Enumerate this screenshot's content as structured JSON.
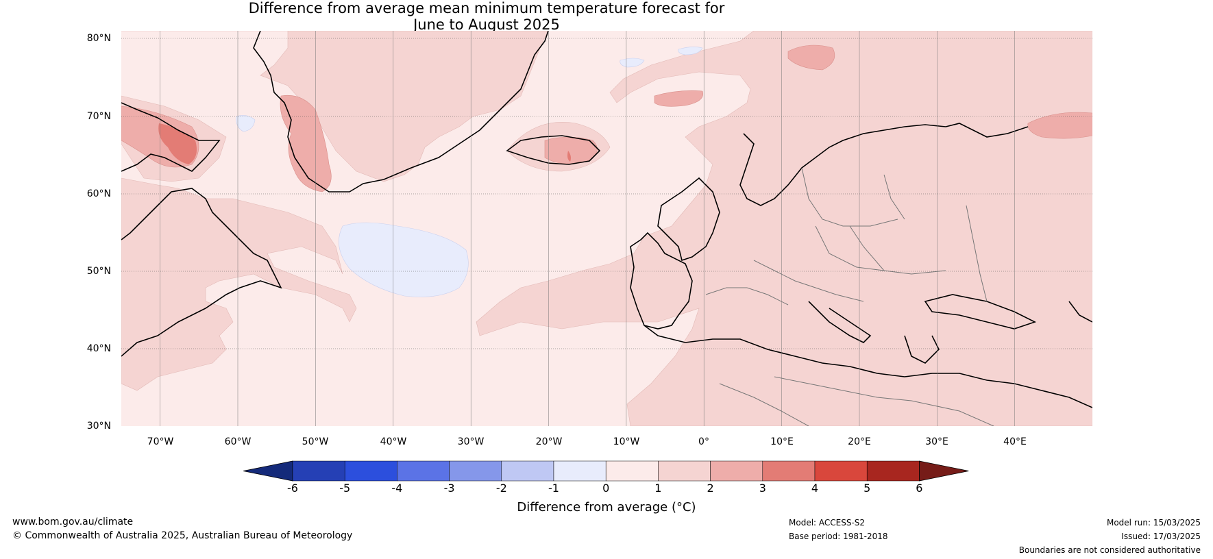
{
  "title": {
    "line1": "Difference from average mean minimum temperature forecast for",
    "line2": "June to August 2025"
  },
  "map": {
    "region": "North Atlantic and Europe",
    "projection": "plate carree",
    "lat_labels": [
      "80°N",
      "70°N",
      "60°N",
      "50°N",
      "40°N",
      "30°N"
    ],
    "lon_labels": [
      "70°W",
      "60°W",
      "50°W",
      "40°W",
      "30°W",
      "20°W",
      "10°W",
      "0°",
      "10°E",
      "20°E",
      "30°E",
      "40°E"
    ],
    "lat_range": [
      30,
      81
    ],
    "lon_range": [
      -75,
      50
    ],
    "gridlines": true,
    "dominant_anomaly": "0 to 1 over ocean, 1 to 2 over most land",
    "features": [
      {
        "name": "Greenland west coast",
        "anomaly": "2 to 3"
      },
      {
        "name": "Baffin Island",
        "anomaly": "3 to 4"
      },
      {
        "name": "Iceland",
        "anomaly": "2 to 3"
      },
      {
        "name": "North Atlantic near 45°W 50°N",
        "anomaly": "-1 to 0"
      },
      {
        "name": "Svalbard",
        "anomaly": "2 to 3"
      },
      {
        "name": "Kola / NW Russia",
        "anomaly": "2 to 3"
      }
    ]
  },
  "colorbar": {
    "label": "Difference from average (°C)",
    "ticks": [
      "-6",
      "-5",
      "-4",
      "-3",
      "-2",
      "-1",
      "0",
      "1",
      "2",
      "3",
      "4",
      "5",
      "6"
    ],
    "colors": [
      "#142a7a",
      "#2540b5",
      "#2c4fdd",
      "#5b73e6",
      "#8597ea",
      "#bfc8f4",
      "#e8ecfc",
      "#fcebea",
      "#f5d4d2",
      "#eeadaa",
      "#e37c75",
      "#d9473c",
      "#a8261f",
      "#761c18"
    ],
    "extend": "both"
  },
  "footer": {
    "website": "www.bom.gov.au/climate",
    "copyright": "© Commonwealth of Australia 2025, Australian Bureau of Meteorology",
    "model": "Model: ACCESS-S2",
    "base_period": "Base period: 1981-2018",
    "model_run": "Model run: 15/03/2025",
    "issued": "Issued: 17/03/2025",
    "disclaimer": "Boundaries are not considered authoritative"
  }
}
